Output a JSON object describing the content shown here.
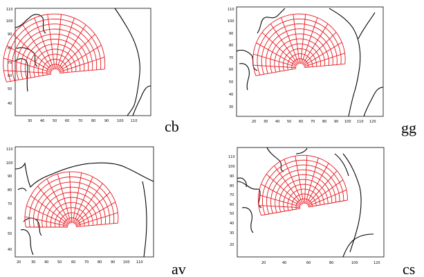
{
  "panels": [
    {
      "label": "cb",
      "x_ticks": [
        "30",
        "40",
        "50",
        "60",
        "70",
        "80",
        "90",
        "100",
        "110"
      ],
      "y_ticks": [
        "110",
        "100",
        "90",
        "80",
        "70",
        "60",
        "50",
        "40"
      ]
    },
    {
      "label": "gg",
      "x_ticks": [
        "20",
        "30",
        "40",
        "50",
        "60",
        "70",
        "80",
        "90",
        "100",
        "110",
        "120"
      ],
      "y_ticks": [
        "110",
        "100",
        "90",
        "80",
        "70",
        "60",
        "50",
        "40",
        "30"
      ]
    },
    {
      "label": "av",
      "x_ticks": [
        "20",
        "30",
        "40",
        "50",
        "60",
        "70",
        "80",
        "90",
        "100",
        "110"
      ],
      "y_ticks": [
        "110",
        "100",
        "90",
        "80",
        "70",
        "60",
        "50",
        "40"
      ]
    },
    {
      "label": "cs",
      "x_ticks": [
        "20",
        "40",
        "60",
        "80",
        "100",
        "120"
      ],
      "y_ticks": [
        "110",
        "100",
        "90",
        "80",
        "70",
        "60",
        "50",
        "40",
        "30",
        "20"
      ]
    }
  ],
  "colors": {
    "grid": "#e8141b",
    "outline": "#000000",
    "frame": "#000000"
  }
}
